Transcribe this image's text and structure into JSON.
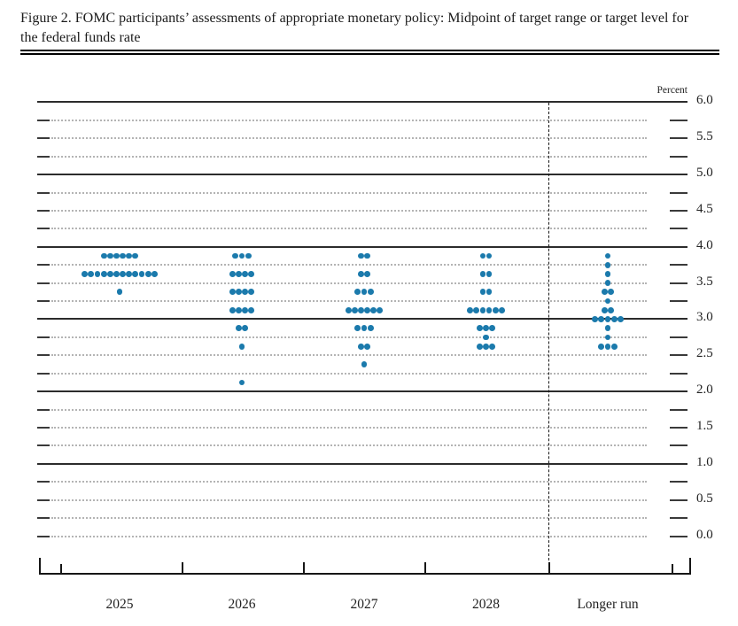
{
  "figure": {
    "title": "Figure 2. FOMC participants’ assessments of appropriate monetary policy: Midpoint of target range or target level for the federal funds rate"
  },
  "chart_data": {
    "type": "scatter",
    "title": "FOMC participants’ assessments of appropriate monetary policy: Midpoint of target range or target level for the federal funds rate",
    "unit_label": "Percent",
    "dot_color": "#1b7aac",
    "y_axis": {
      "min": 0.0,
      "max": 6.0,
      "grid_step": 0.25,
      "label_step": 0.5,
      "solid_gridlines": [
        1.0,
        2.0,
        3.0,
        4.0,
        5.0,
        6.0
      ],
      "tick_labels": [
        "6.0",
        "5.5",
        "5.0",
        "4.5",
        "4.0",
        "3.5",
        "3.0",
        "2.5",
        "2.0",
        "1.5",
        "1.0",
        "0.5",
        "0.0"
      ]
    },
    "categories": [
      "2025",
      "2026",
      "2027",
      "2028",
      "Longer run"
    ],
    "divider_after_category": "2028",
    "series": [
      {
        "category": "2025",
        "dots": [
          {
            "rate": 3.875,
            "count": 6
          },
          {
            "rate": 3.625,
            "count": 12
          },
          {
            "rate": 3.375,
            "count": 1
          }
        ]
      },
      {
        "category": "2026",
        "dots": [
          {
            "rate": 3.875,
            "count": 3
          },
          {
            "rate": 3.625,
            "count": 4
          },
          {
            "rate": 3.375,
            "count": 4
          },
          {
            "rate": 3.125,
            "count": 4
          },
          {
            "rate": 2.875,
            "count": 2
          },
          {
            "rate": 2.625,
            "count": 1
          },
          {
            "rate": 2.125,
            "count": 1
          }
        ]
      },
      {
        "category": "2027",
        "dots": [
          {
            "rate": 3.875,
            "count": 2
          },
          {
            "rate": 3.625,
            "count": 2
          },
          {
            "rate": 3.375,
            "count": 3
          },
          {
            "rate": 3.125,
            "count": 6
          },
          {
            "rate": 2.875,
            "count": 3
          },
          {
            "rate": 2.625,
            "count": 2
          },
          {
            "rate": 2.375,
            "count": 1
          }
        ]
      },
      {
        "category": "2028",
        "dots": [
          {
            "rate": 3.875,
            "count": 2
          },
          {
            "rate": 3.625,
            "count": 2
          },
          {
            "rate": 3.375,
            "count": 2
          },
          {
            "rate": 3.125,
            "count": 6
          },
          {
            "rate": 2.875,
            "count": 3
          },
          {
            "rate": 2.75,
            "count": 1
          },
          {
            "rate": 2.625,
            "count": 3
          }
        ]
      },
      {
        "category": "Longer run",
        "dots": [
          {
            "rate": 3.875,
            "count": 1
          },
          {
            "rate": 3.75,
            "count": 1
          },
          {
            "rate": 3.625,
            "count": 1
          },
          {
            "rate": 3.5,
            "count": 1
          },
          {
            "rate": 3.375,
            "count": 2
          },
          {
            "rate": 3.25,
            "count": 1
          },
          {
            "rate": 3.125,
            "count": 2
          },
          {
            "rate": 3.0,
            "count": 5
          },
          {
            "rate": 2.875,
            "count": 1
          },
          {
            "rate": 2.75,
            "count": 1
          },
          {
            "rate": 2.625,
            "count": 3
          }
        ]
      }
    ]
  }
}
